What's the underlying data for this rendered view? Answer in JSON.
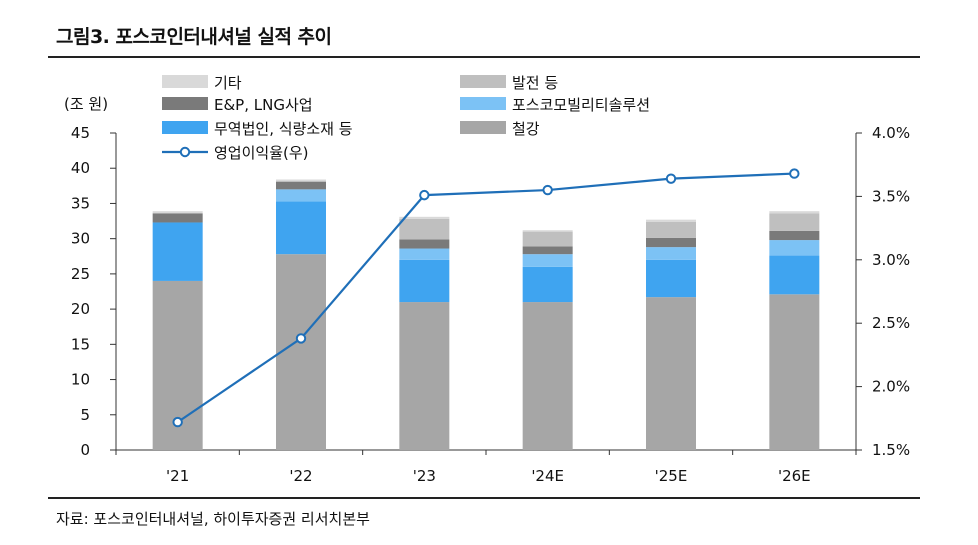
{
  "figure": {
    "title": "그림3. 포스코인터내셔널 실적 추이",
    "source": "자료: 포스코인터내셔널, 하이투자증권 리서치본부"
  },
  "chart_data": {
    "type": "bar",
    "stacked": true,
    "categories": [
      "'21",
      "'22",
      "'23",
      "'24E",
      "'25E",
      "'26E"
    ],
    "left_axis": {
      "unit_label": "(조 원)",
      "ylim": [
        0,
        45
      ],
      "ticks": [
        0,
        5,
        10,
        15,
        20,
        25,
        30,
        35,
        40,
        45
      ]
    },
    "right_axis": {
      "ylim": [
        1.5,
        4.0
      ],
      "ticks": [
        "1.5%",
        "2.0%",
        "2.5%",
        "3.0%",
        "3.5%",
        "4.0%"
      ],
      "tick_values": [
        1.5,
        2.0,
        2.5,
        3.0,
        3.5,
        4.0
      ]
    },
    "series": [
      {
        "name": "철강",
        "color": "#a6a6a6",
        "values": [
          24.0,
          27.8,
          21.0,
          21.0,
          21.7,
          22.1
        ]
      },
      {
        "name": "무역법인, 식량소재 등",
        "color": "#3fa4f0",
        "values": [
          8.3,
          7.5,
          6.0,
          5.0,
          5.3,
          5.5
        ]
      },
      {
        "name": "포스코모빌리티솔루션",
        "color": "#7cc2f5",
        "values": [
          0.0,
          1.7,
          1.6,
          1.8,
          1.8,
          2.2
        ]
      },
      {
        "name": "E&P, LNG사업",
        "color": "#7a7a7a",
        "values": [
          1.3,
          1.1,
          1.3,
          1.1,
          1.3,
          1.3
        ]
      },
      {
        "name": "발전 등",
        "color": "#bfbfbf",
        "values": [
          0.0,
          0.0,
          2.9,
          2.1,
          2.3,
          2.5
        ]
      },
      {
        "name": "기타",
        "color": "#d9d9d9",
        "values": [
          0.3,
          0.3,
          0.3,
          0.2,
          0.3,
          0.3
        ]
      }
    ],
    "line": {
      "name": "영업이익율(우)",
      "color": "#1f6fb8",
      "values": [
        1.72,
        2.38,
        3.51,
        3.55,
        3.64,
        3.68
      ]
    },
    "legend": [
      {
        "label": "기타",
        "color": "#d9d9d9",
        "kind": "box"
      },
      {
        "label": "발전 등",
        "color": "#bfbfbf",
        "kind": "box"
      },
      {
        "label": "E&P, LNG사업",
        "color": "#7a7a7a",
        "kind": "box"
      },
      {
        "label": "포스코모빌리티솔루션",
        "color": "#7cc2f5",
        "kind": "box"
      },
      {
        "label": "무역법인, 식량소재 등",
        "color": "#3fa4f0",
        "kind": "box"
      },
      {
        "label": "철강",
        "color": "#a6a6a6",
        "kind": "box"
      },
      {
        "label": "영업이익율(우)",
        "color": "#1f6fb8",
        "kind": "line"
      }
    ],
    "legend_placement": "top-left",
    "grid": false
  }
}
